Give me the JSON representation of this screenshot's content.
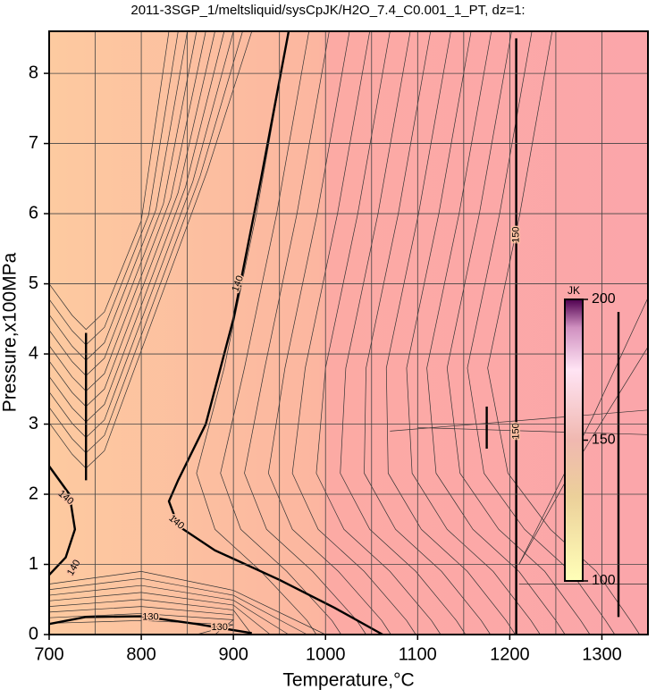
{
  "chart_data": {
    "type": "contour",
    "title": "2011-3SGP_1/meltsliquid/sysCpJK/H2O_7.4_C0.001_1_PT, dz=1:",
    "xlabel": "Temperature,°C",
    "ylabel": "Pressure,x100MPa",
    "xlim": [
      700,
      1350
    ],
    "xticks": [
      700,
      800,
      900,
      1000,
      1100,
      1200,
      1300
    ],
    "minor_xticks": [
      750,
      850,
      950,
      1050,
      1150,
      1250,
      1350
    ],
    "ylim": [
      0,
      8.6
    ],
    "yticks": [
      0,
      1,
      2,
      3,
      4,
      5,
      6,
      7,
      8
    ],
    "grid": true,
    "contour_labels": [
      "140",
      "140",
      "130",
      "130",
      "150",
      "150",
      "140",
      "140"
    ],
    "colorbar": {
      "label": "JK",
      "lim": [
        100,
        200
      ],
      "ticks": [
        100,
        150,
        200
      ]
    }
  }
}
